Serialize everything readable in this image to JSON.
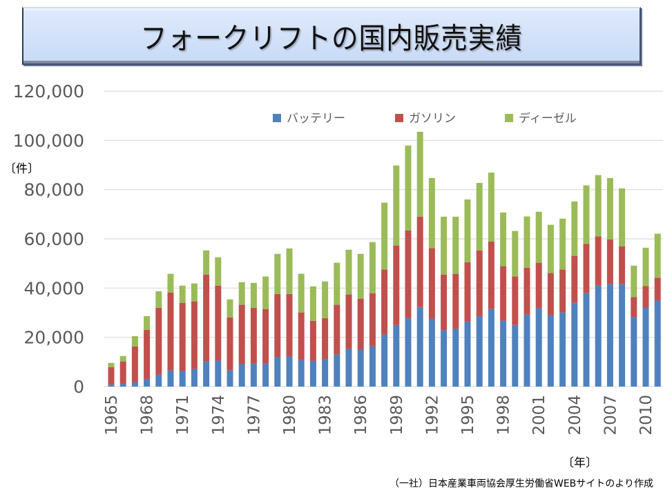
{
  "title": "フォークリフトの国内販売実績",
  "y_unit": "〔件〕",
  "x_unit": "〔年〕",
  "source": "（一社）日本産業車両協会厚生労働省WEBサイトのより作成",
  "colors": {
    "battery": "#4f81bd",
    "gasoline": "#c0504d",
    "diesel": "#9bbb59",
    "grid": "#d9d9d9",
    "tick": "#595959"
  },
  "chart_data": {
    "type": "bar",
    "stacked": true,
    "title": "フォークリフトの国内販売実績",
    "xlabel": "〔年〕",
    "ylabel": "〔件〕",
    "ylim": [
      0,
      120000
    ],
    "yticks": [
      0,
      20000,
      40000,
      60000,
      80000,
      100000,
      120000
    ],
    "ytick_labels": [
      "0",
      "20,000",
      "40,000",
      "60,000",
      "80,000",
      "100,000",
      "120,000"
    ],
    "grid": true,
    "legend_position": "top",
    "categories": [
      1965,
      1966,
      1967,
      1968,
      1969,
      1970,
      1971,
      1972,
      1973,
      1974,
      1975,
      1976,
      1977,
      1978,
      1979,
      1980,
      1981,
      1982,
      1983,
      1984,
      1985,
      1986,
      1987,
      1988,
      1989,
      1990,
      1991,
      1992,
      1993,
      1994,
      1995,
      1996,
      1997,
      1998,
      1999,
      2000,
      2001,
      2002,
      2003,
      2004,
      2005,
      2006,
      2007,
      2008,
      2009,
      2010,
      2011
    ],
    "xtick_labels": [
      "1965",
      "1968",
      "1971",
      "1974",
      "1977",
      "1980",
      "1983",
      "1986",
      "1989",
      "1992",
      "1995",
      "1998",
      "2001",
      "2004",
      "2007",
      "2010"
    ],
    "series": [
      {
        "name": "バッテリー",
        "key": "battery",
        "values": [
          800,
          1100,
          1800,
          3100,
          4800,
          6500,
          6300,
          7100,
          10200,
          10500,
          6500,
          9100,
          9300,
          9300,
          11900,
          12200,
          10700,
          10400,
          11200,
          13000,
          15300,
          15000,
          16300,
          21100,
          25000,
          27800,
          32300,
          27600,
          22800,
          23400,
          26400,
          28600,
          31500,
          26700,
          25000,
          29200,
          31800,
          28900,
          30100,
          34000,
          37900,
          41000,
          41600,
          41600,
          28200,
          32100,
          34900
        ]
      },
      {
        "name": "ガソリン",
        "key": "gasoline",
        "values": [
          7100,
          9100,
          14500,
          19900,
          27200,
          31700,
          27700,
          27500,
          35300,
          30500,
          21600,
          24100,
          22700,
          22200,
          25700,
          25400,
          19400,
          16300,
          16600,
          20200,
          22100,
          20700,
          21600,
          26400,
          32300,
          35600,
          36700,
          28600,
          22700,
          22400,
          24100,
          26700,
          27400,
          22200,
          19700,
          19100,
          18500,
          17200,
          17400,
          19100,
          20000,
          20000,
          18200,
          15400,
          8100,
          8700,
          9300
        ]
      },
      {
        "name": "ディーゼル",
        "key": "diesel",
        "values": [
          1700,
          2200,
          4200,
          5600,
          6700,
          7600,
          7000,
          7300,
          9800,
          11500,
          7300,
          9200,
          10100,
          13200,
          16300,
          18500,
          15700,
          14000,
          14900,
          17100,
          18200,
          18200,
          20800,
          27200,
          32500,
          34500,
          34500,
          28500,
          23500,
          23200,
          25500,
          27400,
          28000,
          21800,
          18500,
          20800,
          20700,
          19600,
          20700,
          22100,
          23800,
          24900,
          24900,
          23500,
          12800,
          15600,
          17900
        ]
      }
    ]
  }
}
